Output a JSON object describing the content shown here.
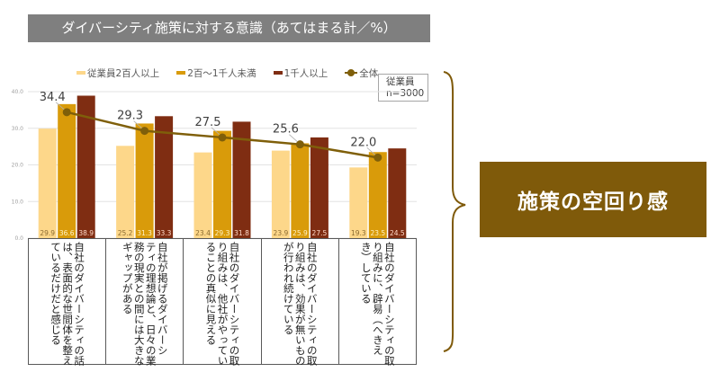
{
  "title": "ダイバーシティ施策に対する意識（あてはまる計／%）",
  "legend": {
    "items": [
      {
        "label": "従業員2百人以上",
        "color": "#fdd78a",
        "kind": "bar"
      },
      {
        "label": "2百～1千人未満",
        "color": "#d99b0a",
        "kind": "bar"
      },
      {
        "label": "1千人以上",
        "color": "#7f2d12",
        "kind": "bar"
      },
      {
        "label": "全体",
        "color": "#7f5f0a",
        "kind": "line"
      }
    ]
  },
  "sample_box": {
    "line1": "従業員",
    "line2": "n=3000"
  },
  "callout": {
    "text": "施策の空回り感",
    "color": "#7f5a0a"
  },
  "categories": [
    {
      "text": "自社のダイバーシティの話\nは、表面的な世間体を整え\nているだけだと感じる"
    },
    {
      "text": "自社が掲げるダイバーシ\nティの理想論と、日々の業\n務の現実との間には大きな\nギャップがある"
    },
    {
      "text": "自社のダイバーシティの取\nり組みは、他社がやってい\nることの真似に見える"
    },
    {
      "text": "自社のダイバーシティの取\nり組みは、効果が無いもの\nが行われ続けている"
    },
    {
      "text": "自社のダイバーシティの取\nり組みに、辟易（へきえ\nき）している"
    }
  ],
  "chart_data": {
    "type": "bar",
    "title": "ダイバーシティ施策に対する意識（あてはまる計／%）",
    "xlabel": "",
    "ylabel": "",
    "ylim": [
      0,
      40
    ],
    "yticks": [
      "0.0",
      "10.0",
      "20.0",
      "30.0",
      "40.0"
    ],
    "grid": true,
    "legend_position": "top",
    "categories": [
      "自社のダイバーシティの話は、表面的な世間体を整えているだけだと感じる",
      "自社が掲げるダイバーシティの理想論と、日々の業務の現実との間には大きなギャップがある",
      "自社のダイバーシティの取り組みは、他社がやっていることの真似に見える",
      "自社のダイバーシティの取り組みは、効果が無いものが行われ続けている",
      "自社のダイバーシティの取り組みに、辟易（へきえき）している"
    ],
    "series": [
      {
        "name": "従業員2百人以上",
        "type": "bar",
        "color": "#fdd78a",
        "values": [
          29.9,
          25.2,
          23.4,
          23.9,
          19.3
        ]
      },
      {
        "name": "2百～1千人未満",
        "type": "bar",
        "color": "#d99b0a",
        "values": [
          36.6,
          31.3,
          29.3,
          25.9,
          23.5
        ]
      },
      {
        "name": "1千人以上",
        "type": "bar",
        "color": "#7f2d12",
        "values": [
          38.9,
          33.3,
          31.8,
          27.5,
          24.5
        ]
      },
      {
        "name": "全体",
        "type": "line",
        "color": "#7f5f0a",
        "values": [
          34.4,
          29.3,
          27.5,
          25.6,
          22.0
        ]
      }
    ],
    "annotations": [
      "従業員 n=3000",
      "施策の空回り感"
    ]
  }
}
